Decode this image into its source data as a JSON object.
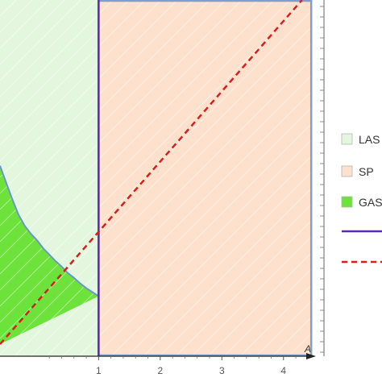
{
  "chart_data": {
    "type": "area",
    "title": "",
    "xlabel": "A",
    "ylabel": "",
    "xlim": [
      -0.6,
      4.5
    ],
    "ylim": [
      -0.75,
      3.7
    ],
    "x_ticks": [
      {
        "value": 1,
        "label": "1"
      },
      {
        "value": 2,
        "label": "2"
      },
      {
        "value": 3,
        "label": "3"
      },
      {
        "value": 4,
        "label": "4"
      }
    ],
    "grid": false,
    "legend_position": "right",
    "regions": [
      {
        "name": "LAS",
        "color": "#e3f7df",
        "x_range": [
          -0.6,
          1
        ],
        "y_range": [
          -0.75,
          3.7
        ]
      },
      {
        "name": "SP",
        "color": "#fde1cd",
        "x_range": [
          1,
          4.45
        ],
        "y_range": [
          -0.75,
          3.7
        ]
      },
      {
        "name": "GAS",
        "color": "#6ce23a",
        "lower_x": [
          -0.6,
          1.0
        ],
        "lower_y": [
          -0.6,
          0.0
        ],
        "upper_x": [
          -0.6,
          -0.5,
          -0.4,
          -0.3,
          -0.2,
          -0.1,
          0.0,
          0.1,
          0.2,
          0.3,
          0.4,
          0.5,
          0.6,
          0.7,
          0.8,
          0.9,
          1.0
        ],
        "upper_y": [
          1.63,
          1.42,
          1.21,
          1.02,
          0.88,
          0.78,
          0.7,
          0.6,
          0.52,
          0.44,
          0.37,
          0.29,
          0.23,
          0.16,
          0.1,
          0.05,
          0.0
        ]
      }
    ],
    "series": [
      {
        "type": "line",
        "color": "#5b2bb5",
        "dash": "solid",
        "x": [
          1,
          1
        ],
        "y": [
          -0.75,
          3.7
        ]
      },
      {
        "type": "line",
        "color": "#d62020",
        "dash": "dashed",
        "x": [
          -0.6,
          4.3
        ],
        "y": [
          -0.6,
          3.7
        ]
      }
    ],
    "legend": [
      {
        "label": "LAS",
        "kind": "swatch",
        "color": "#e3f7df"
      },
      {
        "label": "SP",
        "kind": "swatch",
        "color": "#fde1cd"
      },
      {
        "label": "GAS",
        "kind": "swatch",
        "color": "#6ce23a"
      },
      {
        "label": "",
        "kind": "line",
        "color": "#5b2bb5",
        "dash": "solid"
      },
      {
        "label": "",
        "kind": "line",
        "color": "#d62020",
        "dash": "dashed"
      }
    ]
  }
}
